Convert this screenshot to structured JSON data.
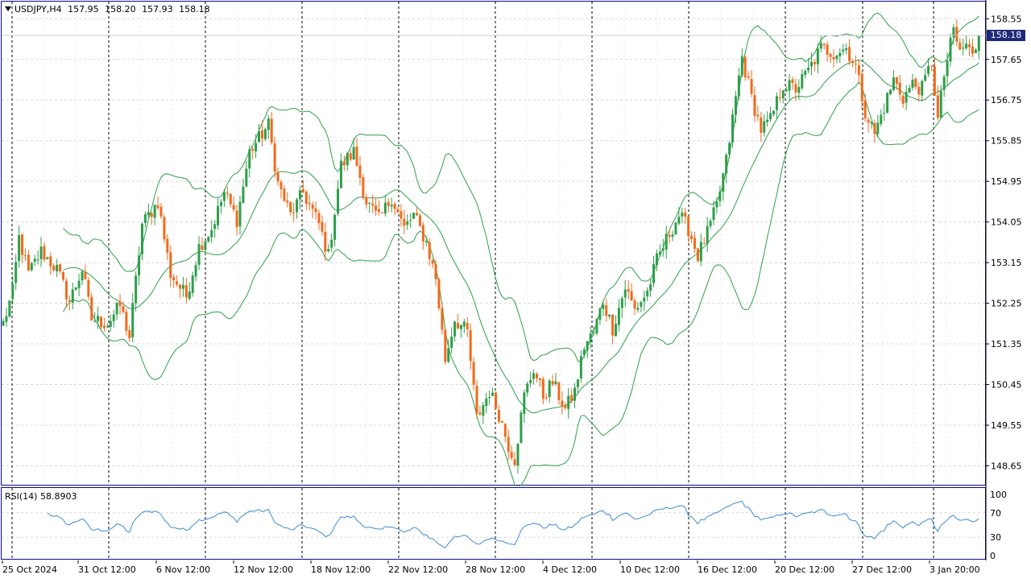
{
  "header": {
    "symbol": "USDJPY,H4",
    "open": "157.95",
    "high": "158.20",
    "low": "157.93",
    "close": "158.18"
  },
  "rsi_header": {
    "label": "RSI(14)",
    "value": "58.8903"
  },
  "current_price_label": "158.18",
  "colors": {
    "bull": "#2e9e4a",
    "bear": "#f26a1b",
    "bands": "#2e9e4a",
    "rsi": "#3b8bd4",
    "frame": "#0c0c8c",
    "grid": "#d8d8d8",
    "price_tag": "#1e2a78"
  },
  "chart_data": [
    {
      "type": "candlestick",
      "title": "USDJPY,H4",
      "price_axis_ticks": [
        "158.55",
        "157.65",
        "156.75",
        "155.85",
        "154.95",
        "154.05",
        "153.15",
        "152.25",
        "151.35",
        "150.45",
        "149.55",
        "148.65"
      ],
      "ylim": [
        148.23,
        158.93
      ],
      "time_axis_labels": [
        "25 Oct 2024",
        "31 Oct 12:00",
        "6 Nov 12:00",
        "12 Nov 12:00",
        "18 Nov 12:00",
        "22 Nov 12:00",
        "28 Nov 12:00",
        "4 Dec 12:00",
        "10 Dec 12:00",
        "16 Dec 12:00",
        "20 Dec 12:00",
        "27 Dec 12:00",
        "3 Jan 20:00"
      ],
      "overlay": "Bollinger Bands",
      "close_anchors": [
        [
          0,
          151.8
        ],
        [
          3,
          152.5
        ],
        [
          5,
          153.7
        ],
        [
          8,
          152.9
        ],
        [
          12,
          153.4
        ],
        [
          17,
          153.0
        ],
        [
          21,
          152.3
        ],
        [
          25,
          153.0
        ],
        [
          28,
          151.9
        ],
        [
          33,
          151.8
        ],
        [
          37,
          152.2
        ],
        [
          40,
          151.5
        ],
        [
          44,
          154.0
        ],
        [
          49,
          154.5
        ],
        [
          53,
          152.9
        ],
        [
          58,
          152.4
        ],
        [
          62,
          153.5
        ],
        [
          66,
          153.9
        ],
        [
          70,
          154.7
        ],
        [
          74,
          154.1
        ],
        [
          78,
          155.6
        ],
        [
          84,
          156.2
        ],
        [
          87,
          154.9
        ],
        [
          91,
          154.2
        ],
        [
          95,
          154.7
        ],
        [
          100,
          154.0
        ],
        [
          103,
          153.3
        ],
        [
          107,
          155.3
        ],
        [
          111,
          155.6
        ],
        [
          115,
          154.5
        ],
        [
          119,
          154.1
        ],
        [
          123,
          154.6
        ],
        [
          127,
          153.9
        ],
        [
          130,
          154.2
        ],
        [
          134,
          153.6
        ],
        [
          137,
          152.8
        ],
        [
          140,
          151.0
        ],
        [
          143,
          151.9
        ],
        [
          147,
          151.6
        ],
        [
          150,
          149.7
        ],
        [
          154,
          150.3
        ],
        [
          157,
          149.8
        ],
        [
          160,
          149.1
        ],
        [
          162,
          148.8
        ],
        [
          165,
          150.2
        ],
        [
          168,
          150.8
        ],
        [
          171,
          150.2
        ],
        [
          174,
          150.5
        ],
        [
          178,
          149.9
        ],
        [
          181,
          150.3
        ],
        [
          184,
          151.3
        ],
        [
          187,
          151.6
        ],
        [
          190,
          152.3
        ],
        [
          193,
          151.7
        ],
        [
          197,
          152.6
        ],
        [
          200,
          152.1
        ],
        [
          204,
          152.5
        ],
        [
          207,
          153.2
        ],
        [
          211,
          153.8
        ],
        [
          214,
          154.2
        ],
        [
          217,
          153.9
        ],
        [
          220,
          153.3
        ],
        [
          223,
          153.8
        ],
        [
          226,
          154.4
        ],
        [
          229,
          155.4
        ],
        [
          232,
          156.8
        ],
        [
          234,
          157.7
        ],
        [
          237,
          156.8
        ],
        [
          240,
          156.1
        ],
        [
          243,
          156.3
        ],
        [
          247,
          157.1
        ],
        [
          251,
          157.0
        ],
        [
          255,
          157.4
        ],
        [
          259,
          157.9
        ],
        [
          263,
          157.8
        ],
        [
          267,
          157.9
        ],
        [
          270,
          157.5
        ],
        [
          273,
          156.5
        ],
        [
          276,
          156.0
        ],
        [
          279,
          156.6
        ],
        [
          282,
          157.2
        ],
        [
          285,
          156.8
        ],
        [
          288,
          157.1
        ],
        [
          291,
          157.0
        ],
        [
          294,
          157.6
        ],
        [
          296,
          156.3
        ],
        [
          298,
          157.3
        ],
        [
          301,
          158.3
        ],
        [
          303,
          157.8
        ],
        [
          305,
          158.0
        ],
        [
          307,
          157.7
        ],
        [
          309,
          158.18
        ]
      ],
      "rsi": {
        "name": "RSI(14)",
        "levels": [
          100,
          70,
          30,
          0
        ],
        "ylim": [
          0,
          100
        ]
      }
    }
  ]
}
